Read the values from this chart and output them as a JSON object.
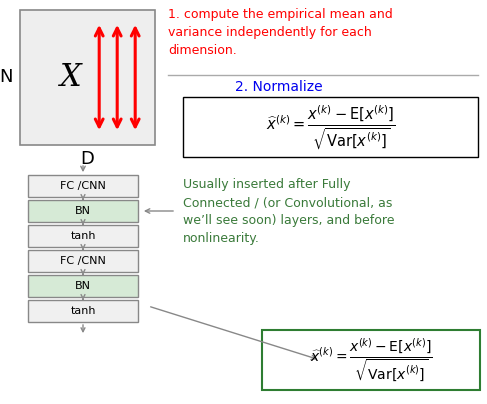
{
  "bg_color": "#ffffff",
  "box_edge": "#888888",
  "bn_fill": "#d6ead6",
  "red": "#ff0000",
  "blue": "#0000ee",
  "green": "#3a7a3a",
  "black": "#000000",
  "gray": "#888888",
  "dark_green_border": "#2e7d32",
  "text1": "1. compute the empirical mean and\nvariance independently for each\ndimension.",
  "text2": "2. Normalize",
  "text3": "Usually inserted after Fully\nConnected / (or Convolutional, as\nwe’ll see soon) layers, and before\nnonlinearity.",
  "label_N": "N",
  "label_D": "D",
  "label_X": "X",
  "fc_label": "FC /CNN",
  "bn_label": "BN",
  "tanh_label": "tanh"
}
